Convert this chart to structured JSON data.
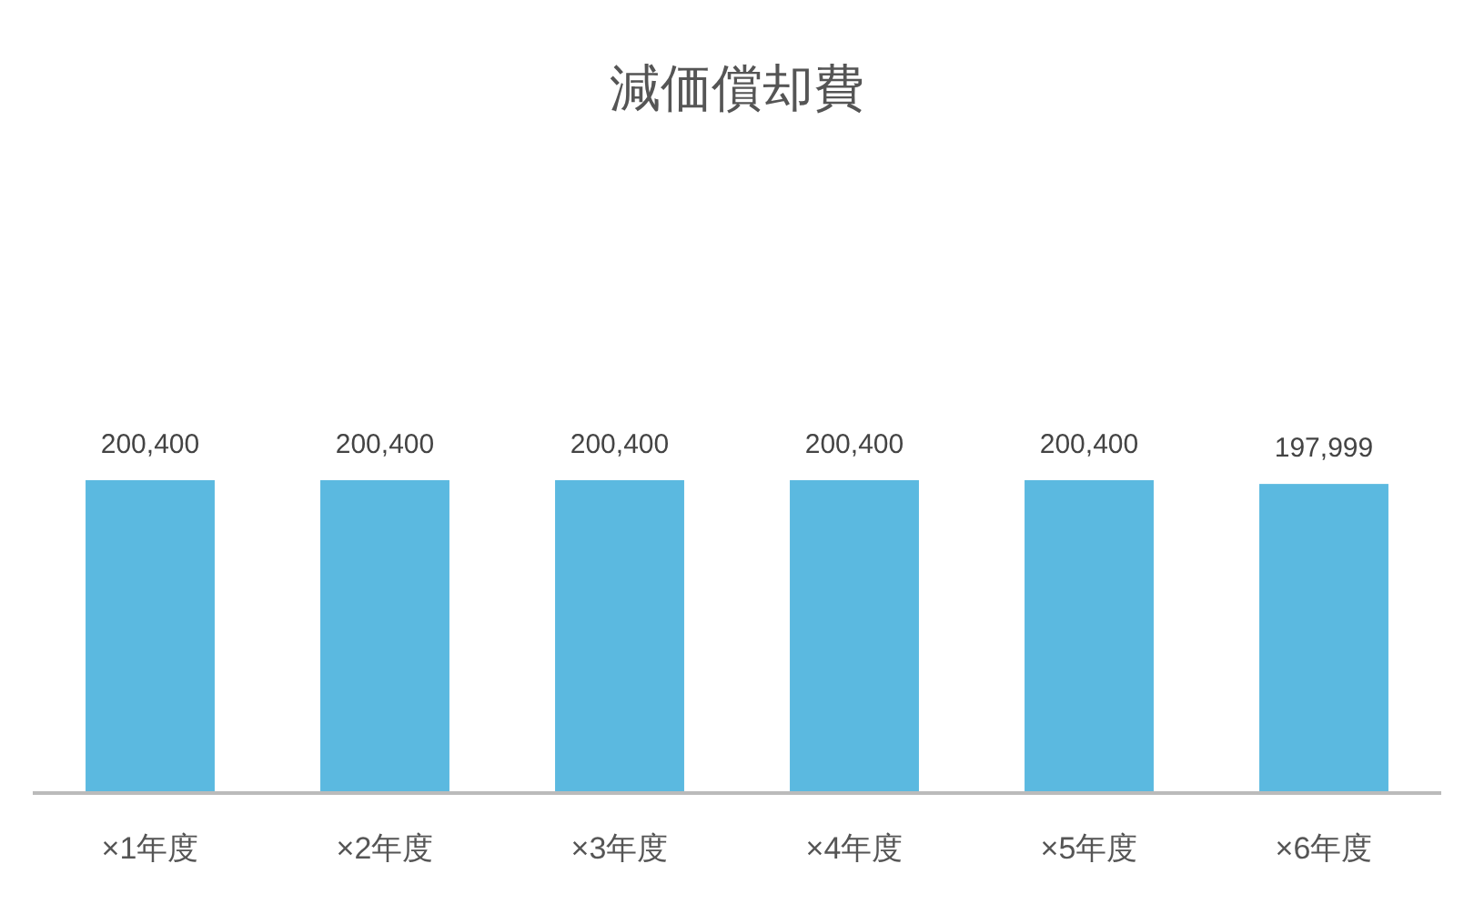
{
  "chart_data": {
    "type": "bar",
    "title": "減価償却費",
    "categories": [
      "×1年度",
      "×2年度",
      "×3年度",
      "×4年度",
      "×5年度",
      "×6年度"
    ],
    "values": [
      200400,
      200400,
      200400,
      200400,
      200400,
      197999
    ],
    "value_labels": [
      "200,400",
      "200,400",
      "200,400",
      "200,400",
      "200,400",
      "197,999"
    ],
    "color": "#5bb9e0",
    "tick_labels": "x"
  }
}
